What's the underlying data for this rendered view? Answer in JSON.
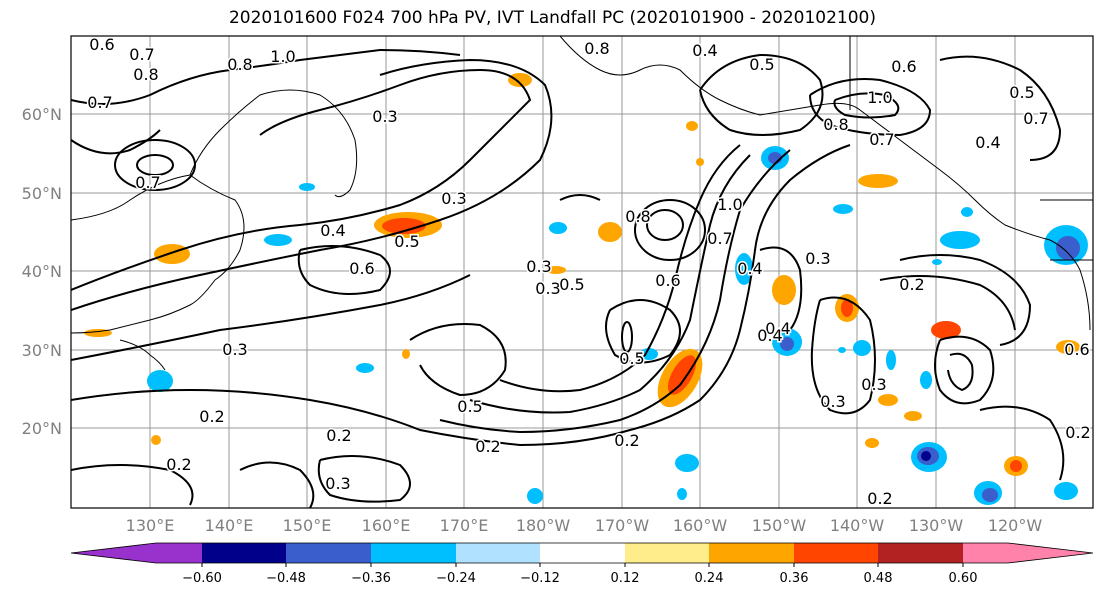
{
  "title": "2020101600 F024 700 hPa PV, IVT Landfall PC (2020101900 - 2020102100)",
  "lat_labels": [
    "60°N",
    "50°N",
    "40°N",
    "30°N",
    "20°N"
  ],
  "lon_labels": [
    "130°E",
    "140°E",
    "150°E",
    "160°E",
    "170°E",
    "180°W",
    "170°W",
    "160°W",
    "150°W",
    "140°W",
    "130°W",
    "120°W"
  ],
  "colorbar": {
    "ticks": [
      "−0.60",
      "−0.48",
      "−0.36",
      "−0.24",
      "−0.12",
      "0.12",
      "0.24",
      "0.36",
      "0.48",
      "0.60"
    ],
    "colors": [
      "#9932cc",
      "#00008b",
      "#3a5fcd",
      "#00bfff",
      "#b0e2ff",
      "#ffffff",
      "#ffec8b",
      "#ffa500",
      "#ff4500",
      "#b22222",
      "#ff82ab"
    ]
  },
  "contour_labels": [
    "0.6",
    "0.7",
    "0.8",
    "0.7",
    "1.0",
    "0.8",
    "0.8",
    "0.4",
    "0.5",
    "0.6",
    "1.0",
    "0.8",
    "0.7",
    "0.5",
    "0.7",
    "0.4",
    "0.7",
    "0.3",
    "0.3",
    "0.4",
    "0.5",
    "0.6",
    "0.3",
    "0.8",
    "1.0",
    "0.7",
    "0.4",
    "0.3",
    "0.5",
    "0.6",
    "0.4",
    "0.2",
    "0.3",
    "0.3",
    "0.5",
    "0.5",
    "0.2",
    "0.2",
    "0.2",
    "0.2",
    "0.3",
    "0.2",
    "0.3",
    "0.2",
    "0.4",
    "0.3",
    "0.6",
    "0.2"
  ]
}
